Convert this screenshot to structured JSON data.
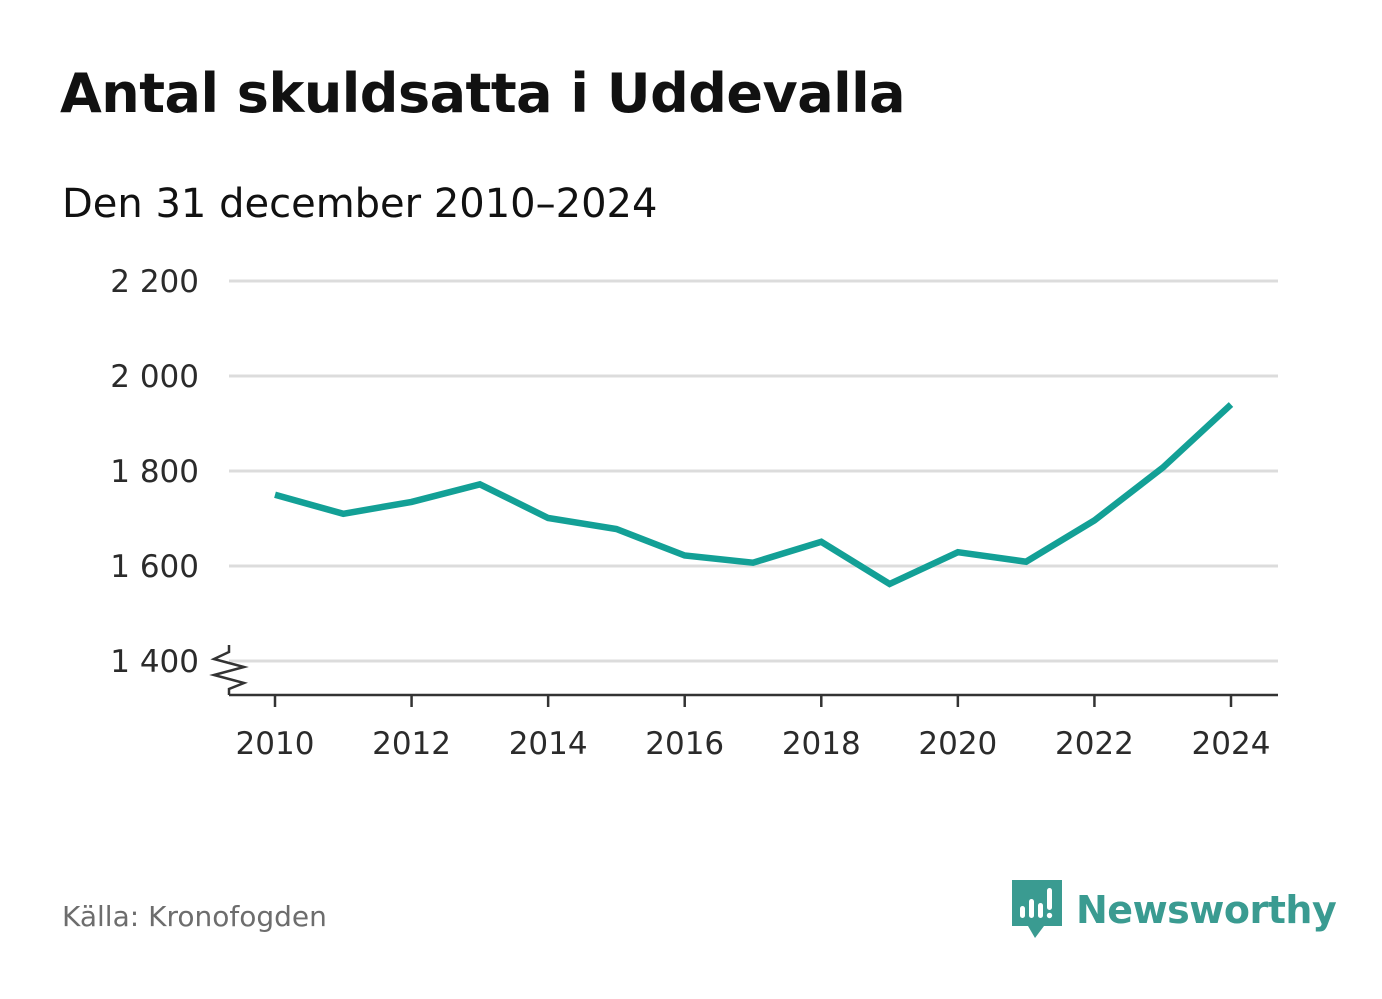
{
  "header": {
    "title": "Antal skuldsatta i Uddevalla",
    "subtitle": "Den 31 december 2010–2024"
  },
  "footer": {
    "source": "Källa: Kronofogden",
    "brand": "Newsworthy"
  },
  "colors": {
    "line": "#13a096",
    "grid": "#dcdcdc",
    "axis": "#333333",
    "brand": "#3a9b91"
  },
  "icons": {
    "brand_logo": "bar-chart-speech-bubble-icon",
    "axis_break": "zigzag-axis-break-icon"
  },
  "chart_data": {
    "type": "line",
    "title": "Antal skuldsatta i Uddevalla",
    "subtitle": "Den 31 december 2010–2024",
    "xlabel": "",
    "ylabel": "",
    "x": [
      2010,
      2011,
      2012,
      2013,
      2014,
      2015,
      2016,
      2017,
      2018,
      2019,
      2020,
      2021,
      2022,
      2023,
      2024
    ],
    "series": [
      {
        "name": "Antal skuldsatta",
        "values": [
          1750,
          1710,
          1735,
          1772,
          1701,
          1678,
          1622,
          1607,
          1651,
          1562,
          1629,
          1609,
          1696,
          1807,
          1940
        ]
      }
    ],
    "ylim": [
      1330,
      2200
    ],
    "axis_break": true,
    "yticks": [
      1400,
      1600,
      1800,
      2000,
      2200
    ],
    "ytick_labels": [
      "1 400",
      "1 600",
      "1 800",
      "2 000",
      "2 200"
    ],
    "xticks": [
      2010,
      2012,
      2014,
      2016,
      2018,
      2020,
      2022,
      2024
    ],
    "xtick_labels": [
      "2010",
      "2012",
      "2014",
      "2016",
      "2018",
      "2020",
      "2022",
      "2024"
    ],
    "grid": true,
    "legend": "none"
  }
}
